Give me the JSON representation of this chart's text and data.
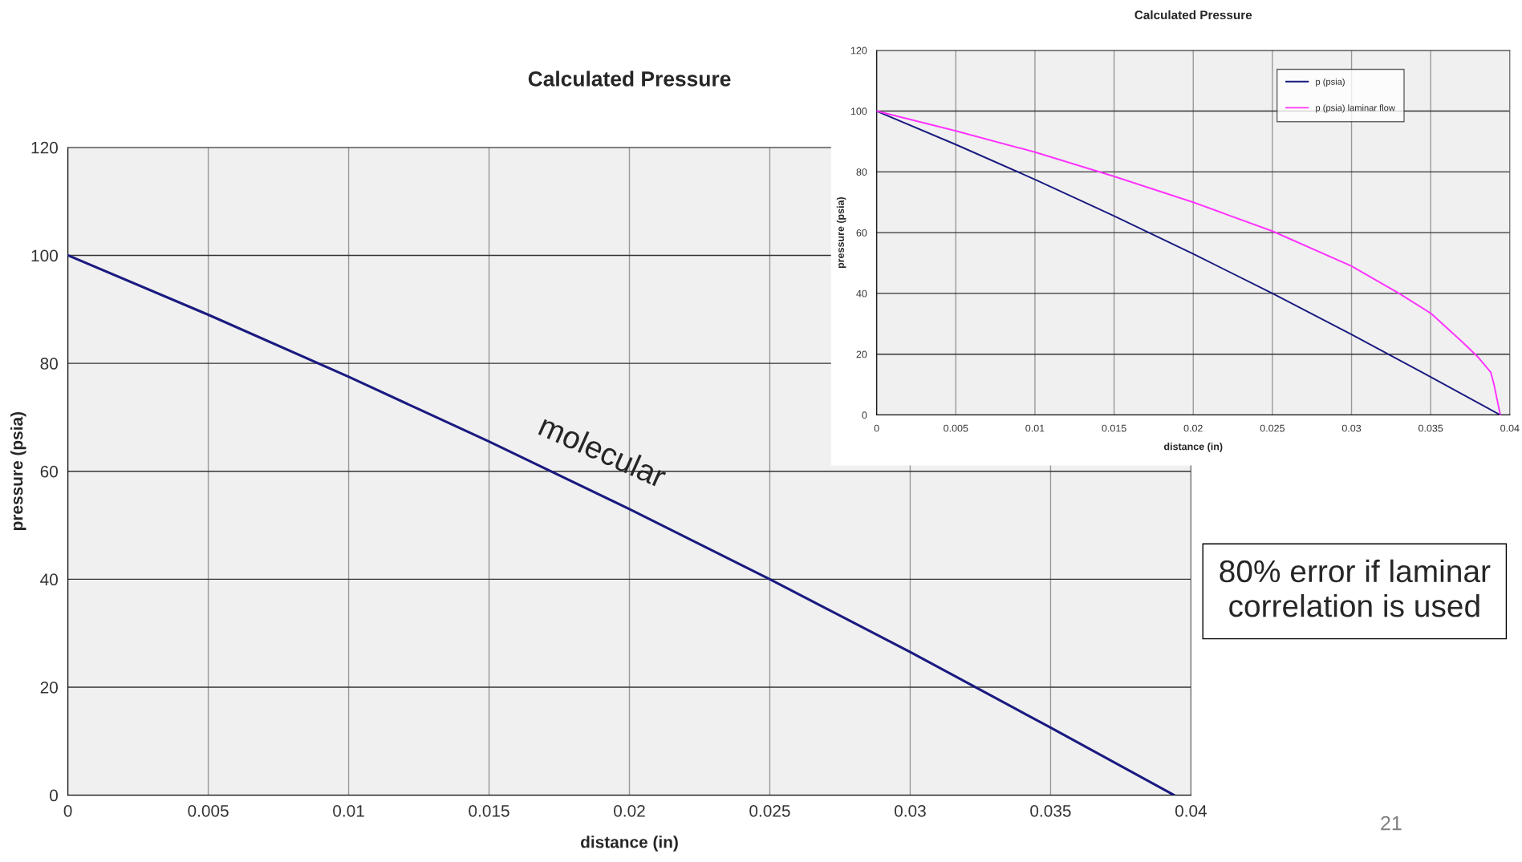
{
  "chart_data": [
    {
      "type": "line",
      "title": "Calculated Pressure",
      "xlabel": "distance (in)",
      "ylabel": "pressure (psia)",
      "x": [
        0,
        0.005,
        0.01,
        0.015,
        0.02,
        0.025,
        0.03,
        0.035,
        0.0394
      ],
      "series": [
        {
          "color": "#1a1a80",
          "values": [
            100,
            89,
            77.5,
            65.5,
            53,
            40,
            26.5,
            12.5,
            0
          ]
        }
      ],
      "xlim": [
        0,
        0.04
      ],
      "xticks": [
        0,
        0.005,
        0.01,
        0.015,
        0.02,
        0.025,
        0.03,
        0.035,
        0.04
      ],
      "ylim": [
        0,
        120
      ],
      "yticks": [
        0,
        20,
        40,
        60,
        80,
        100,
        120
      ],
      "grid": true,
      "legend": false,
      "annotations": [
        "molecular",
        "80% error if laminar correlation is used",
        "21"
      ]
    },
    {
      "type": "line",
      "title": "Calculated Pressure",
      "xlabel": "distance (in)",
      "ylabel": "pressure (psia)",
      "series": [
        {
          "name": "p (psia)",
          "color": "#1a1a80",
          "x": [
            0,
            0.005,
            0.01,
            0.015,
            0.02,
            0.025,
            0.03,
            0.035,
            0.0394
          ],
          "values": [
            100,
            89,
            77.5,
            65.5,
            53,
            40,
            26.5,
            12.5,
            0
          ]
        },
        {
          "name": "p (psia) laminar flow",
          "color": "#ff33ff",
          "x": [
            0,
            0.005,
            0.01,
            0.015,
            0.02,
            0.025,
            0.03,
            0.033,
            0.035,
            0.037,
            0.038,
            0.0388,
            0.039,
            0.0394
          ],
          "values": [
            100,
            93.5,
            86.5,
            78.5,
            70,
            60.5,
            49,
            40,
            33.5,
            24,
            19,
            14,
            10,
            0
          ]
        }
      ],
      "xlim": [
        0,
        0.04
      ],
      "xticks": [
        0,
        0.005,
        0.01,
        0.015,
        0.02,
        0.025,
        0.03,
        0.035,
        0.04
      ],
      "ylim": [
        0,
        120
      ],
      "yticks": [
        0,
        20,
        40,
        60,
        80,
        100,
        120
      ],
      "grid": true,
      "legend": "top right"
    }
  ]
}
